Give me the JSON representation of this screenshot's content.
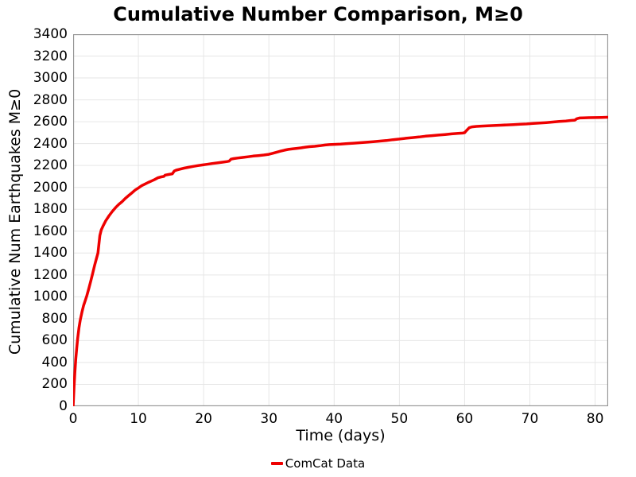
{
  "colors": {
    "line": "#ee0000",
    "grid": "#e6e6e6",
    "border": "#959595",
    "text": "#000000",
    "background": "#ffffff"
  },
  "chart_data": {
    "type": "line",
    "title": "Cumulative Number Comparison, M≥0",
    "xlabel": "Time (days)",
    "ylabel": "Cumulative Num Earthquakes M≥0",
    "xlim": [
      0,
      82
    ],
    "ylim": [
      0,
      3400
    ],
    "x_ticks": [
      0,
      10,
      20,
      30,
      40,
      50,
      60,
      70,
      80
    ],
    "y_ticks": [
      0,
      200,
      400,
      600,
      800,
      1000,
      1200,
      1400,
      1600,
      1800,
      2000,
      2200,
      2400,
      2600,
      2800,
      3000,
      3200,
      3400
    ],
    "grid": true,
    "legend_position": "bottom-center",
    "series": [
      {
        "name": "ComCat Data",
        "color": "#ee0000",
        "line_width": 3.5,
        "points": [
          [
            0,
            0
          ],
          [
            0.05,
            60
          ],
          [
            0.15,
            185
          ],
          [
            0.25,
            300
          ],
          [
            0.4,
            430
          ],
          [
            0.55,
            530
          ],
          [
            0.7,
            620
          ],
          [
            0.9,
            720
          ],
          [
            1.1,
            790
          ],
          [
            1.35,
            860
          ],
          [
            1.6,
            920
          ],
          [
            1.85,
            965
          ],
          [
            2.1,
            1010
          ],
          [
            2.4,
            1075
          ],
          [
            2.7,
            1145
          ],
          [
            3.0,
            1215
          ],
          [
            3.3,
            1290
          ],
          [
            3.6,
            1355
          ],
          [
            3.8,
            1400
          ],
          [
            3.95,
            1480
          ],
          [
            4.1,
            1560
          ],
          [
            4.3,
            1610
          ],
          [
            4.6,
            1650
          ],
          [
            5.0,
            1695
          ],
          [
            5.5,
            1740
          ],
          [
            6.0,
            1780
          ],
          [
            6.5,
            1815
          ],
          [
            7.0,
            1845
          ],
          [
            7.5,
            1870
          ],
          [
            8.0,
            1900
          ],
          [
            8.5,
            1925
          ],
          [
            9.0,
            1950
          ],
          [
            9.5,
            1975
          ],
          [
            10.0,
            1995
          ],
          [
            10.5,
            2015
          ],
          [
            11.0,
            2030
          ],
          [
            11.5,
            2045
          ],
          [
            12.0,
            2058
          ],
          [
            12.5,
            2072
          ],
          [
            13.0,
            2088
          ],
          [
            13.5,
            2096
          ],
          [
            13.9,
            2100
          ],
          [
            14.1,
            2112
          ],
          [
            14.6,
            2118
          ],
          [
            15.2,
            2124
          ],
          [
            15.5,
            2150
          ],
          [
            15.8,
            2158
          ],
          [
            16.3,
            2166
          ],
          [
            17.0,
            2176
          ],
          [
            17.7,
            2184
          ],
          [
            18.4,
            2192
          ],
          [
            19.1,
            2199
          ],
          [
            19.8,
            2205
          ],
          [
            20.5,
            2211
          ],
          [
            21.3,
            2218
          ],
          [
            22.1,
            2224
          ],
          [
            22.9,
            2230
          ],
          [
            23.6,
            2236
          ],
          [
            23.9,
            2240
          ],
          [
            24.2,
            2258
          ],
          [
            24.6,
            2263
          ],
          [
            25.3,
            2269
          ],
          [
            26.0,
            2274
          ],
          [
            26.8,
            2280
          ],
          [
            27.6,
            2286
          ],
          [
            28.4,
            2291
          ],
          [
            29.2,
            2296
          ],
          [
            30.0,
            2302
          ],
          [
            30.6,
            2312
          ],
          [
            31.2,
            2322
          ],
          [
            31.8,
            2331
          ],
          [
            32.4,
            2340
          ],
          [
            33.0,
            2347
          ],
          [
            33.6,
            2352
          ],
          [
            34.3,
            2357
          ],
          [
            35.0,
            2362
          ],
          [
            35.6,
            2368
          ],
          [
            36.2,
            2372
          ],
          [
            37.0,
            2376
          ],
          [
            37.8,
            2381
          ],
          [
            38.6,
            2387
          ],
          [
            39.3,
            2391
          ],
          [
            40.0,
            2393
          ],
          [
            41.0,
            2396
          ],
          [
            42.0,
            2400
          ],
          [
            43.0,
            2404
          ],
          [
            44.0,
            2408
          ],
          [
            45.0,
            2413
          ],
          [
            46.0,
            2418
          ],
          [
            47.0,
            2423
          ],
          [
            48.0,
            2428
          ],
          [
            49.0,
            2436
          ],
          [
            50.0,
            2442
          ],
          [
            51.0,
            2449
          ],
          [
            52.0,
            2455
          ],
          [
            53.0,
            2461
          ],
          [
            54.0,
            2468
          ],
          [
            55.0,
            2473
          ],
          [
            56.0,
            2478
          ],
          [
            57.0,
            2483
          ],
          [
            58.0,
            2489
          ],
          [
            59.0,
            2493
          ],
          [
            59.7,
            2496
          ],
          [
            60.0,
            2500
          ],
          [
            60.3,
            2520
          ],
          [
            60.7,
            2545
          ],
          [
            61.1,
            2553
          ],
          [
            61.8,
            2557
          ],
          [
            62.6,
            2560
          ],
          [
            63.5,
            2562
          ],
          [
            64.5,
            2565
          ],
          [
            65.5,
            2568
          ],
          [
            66.5,
            2571
          ],
          [
            67.5,
            2574
          ],
          [
            68.5,
            2577
          ],
          [
            69.5,
            2580
          ],
          [
            70.5,
            2584
          ],
          [
            71.5,
            2588
          ],
          [
            72.5,
            2592
          ],
          [
            73.5,
            2597
          ],
          [
            74.5,
            2602
          ],
          [
            75.5,
            2607
          ],
          [
            76.3,
            2612
          ],
          [
            76.9,
            2615
          ],
          [
            77.2,
            2628
          ],
          [
            77.6,
            2634
          ],
          [
            78.2,
            2636
          ],
          [
            79.0,
            2637
          ],
          [
            80.0,
            2638
          ],
          [
            81.0,
            2639
          ],
          [
            81.9,
            2641
          ]
        ]
      }
    ]
  }
}
